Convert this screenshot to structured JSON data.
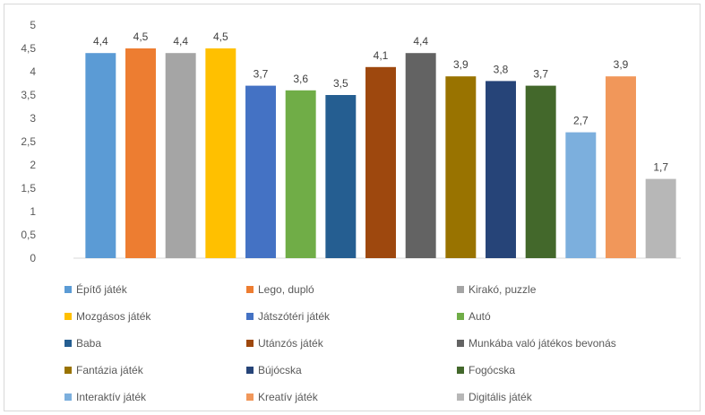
{
  "chart_data": {
    "type": "bar",
    "categories": [
      "Építő játék",
      "Lego, dupló",
      "Kirakó, puzzle",
      "Mozgásos játék",
      "Játszótéri játék",
      "Autó",
      "Baba",
      "Utánzós játék",
      "Munkába való játékos bevonás",
      "Fantázia játék",
      "Bújócska",
      "Fogócska",
      "Interaktív játék",
      "Kreatív játék",
      "Digitális játék"
    ],
    "values": [
      4.4,
      4.5,
      4.4,
      4.5,
      3.7,
      3.6,
      3.5,
      4.1,
      4.4,
      3.9,
      3.8,
      3.7,
      2.7,
      3.9,
      1.7
    ],
    "data_labels": [
      "4,4",
      "4,5",
      "4,4",
      "4,5",
      "3,7",
      "3,6",
      "3,5",
      "4,1",
      "4,4",
      "3,9",
      "3,8",
      "3,7",
      "2,7",
      "3,9",
      "1,7"
    ],
    "colors": [
      "#5b9bd5",
      "#ed7d31",
      "#a5a5a5",
      "#ffc000",
      "#4472c4",
      "#70ad47",
      "#255e91",
      "#9e480e",
      "#636363",
      "#997300",
      "#264478",
      "#43682b",
      "#7cafdd",
      "#f1975a",
      "#b7b7b7"
    ],
    "ylim": [
      0,
      5
    ],
    "yticks": [
      "0",
      "0,5",
      "1",
      "1,5",
      "2",
      "2,5",
      "3",
      "3,5",
      "4",
      "4,5",
      "5"
    ],
    "grid": false,
    "legend": "bottom",
    "title": "",
    "xlabel": "",
    "ylabel": ""
  }
}
